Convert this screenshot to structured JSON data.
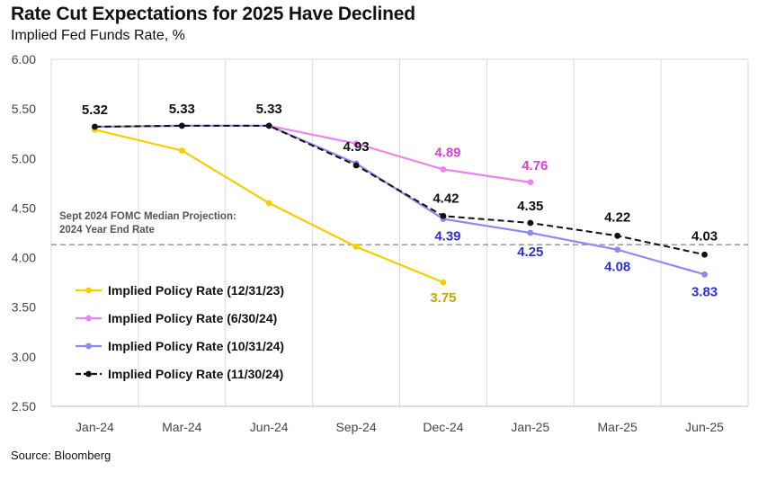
{
  "title": "Rate Cut Expectations for 2025 Have Declined",
  "subtitle": "Implied Fed Funds Rate, %",
  "source": "Source: Bloomberg",
  "chart_data": {
    "type": "line",
    "categories": [
      "Jan-24",
      "Mar-24",
      "Jun-24",
      "Sep-24",
      "Dec-24",
      "Jan-25",
      "Mar-25",
      "Jun-25"
    ],
    "y_ticks": [
      "6.00",
      "5.50",
      "5.00",
      "4.50",
      "4.00",
      "3.50",
      "3.00",
      "2.50"
    ],
    "ylim": [
      2.5,
      6.0
    ],
    "grid": "vertical",
    "legend_position": "bottom-left",
    "series": [
      {
        "name": "Implied Policy Rate (12/31/23)",
        "color": "#F5CD00",
        "label_color": "#C9A400",
        "dash": false,
        "values": [
          5.29,
          5.08,
          4.55,
          4.11,
          3.75,
          null,
          null,
          null
        ],
        "labels": [
          null,
          null,
          null,
          null,
          "3.75",
          null,
          null,
          null
        ]
      },
      {
        "name": "Implied Policy Rate (6/30/24)",
        "color": "#EE82EE",
        "label_color": "#D63FD6",
        "dash": false,
        "values": [
          5.32,
          5.33,
          5.33,
          5.15,
          4.89,
          4.76,
          null,
          null
        ],
        "labels": [
          null,
          null,
          null,
          null,
          "4.89",
          "4.76",
          null,
          null
        ]
      },
      {
        "name": "Implied Policy Rate (10/31/24)",
        "color": "#8A8AF0",
        "label_color": "#2F2FD0",
        "dash": false,
        "values": [
          5.32,
          5.33,
          5.33,
          4.95,
          4.39,
          4.25,
          4.08,
          3.83
        ],
        "labels": [
          null,
          null,
          null,
          null,
          "4.39",
          "4.25",
          "4.08",
          "3.83"
        ]
      },
      {
        "name": "Implied Policy Rate (11/30/24)",
        "color": "#111111",
        "label_color": "#111111",
        "dash": true,
        "values": [
          5.32,
          5.33,
          5.33,
          4.93,
          4.42,
          4.35,
          4.22,
          4.03
        ],
        "labels": [
          "5.32",
          "5.33",
          "5.33",
          "4.93",
          "4.42",
          "4.35",
          "4.22",
          "4.03"
        ]
      }
    ],
    "reference_line": {
      "value": 4.13,
      "color": "#999999",
      "label_line1": "Sept 2024 FOMC Median Projection:",
      "label_line2": "2024 Year End Rate"
    }
  }
}
